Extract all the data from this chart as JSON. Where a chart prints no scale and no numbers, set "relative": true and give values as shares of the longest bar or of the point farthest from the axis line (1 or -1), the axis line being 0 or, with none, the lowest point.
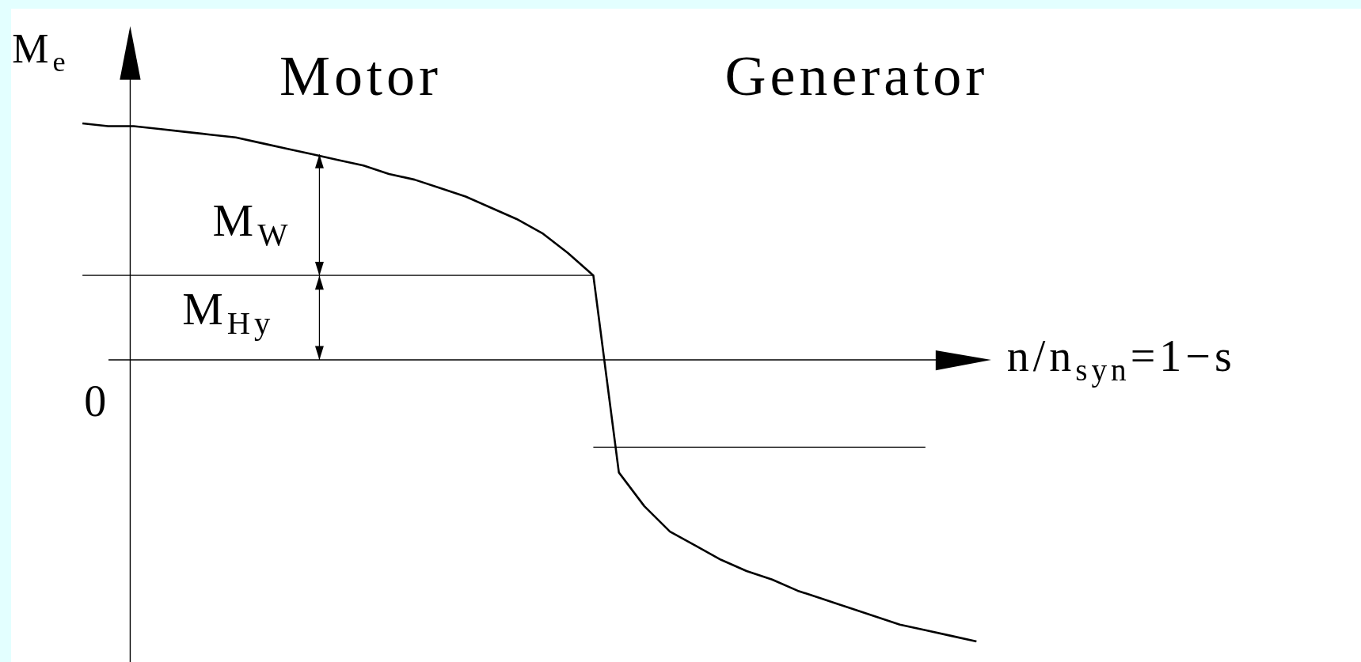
{
  "chart_data": {
    "type": "line",
    "relative": true,
    "ylabel": "M$_{e}$",
    "xlabel": "n/n$_{syn}$=1−s",
    "categories": [
      null,
      null,
      null,
      null,
      null,
      null,
      null,
      null,
      null,
      null,
      null,
      null,
      null,
      null,
      null,
      null,
      null,
      null,
      null,
      null,
      null,
      null,
      null,
      null,
      null,
      null,
      null,
      null,
      null,
      null,
      null,
      null,
      null,
      null,
      null,
      null
    ],
    "series": [
      {
        "color": "#000000",
        "values": [
          0.84,
          0.83,
          0.83,
          0.82,
          0.81,
          0.8,
          0.79,
          0.77,
          0.75,
          0.73,
          0.71,
          0.69,
          0.66,
          0.64,
          0.61,
          0.58,
          0.54,
          0.5,
          0.45,
          0.38,
          0.3,
          -0.4,
          -0.52,
          -0.61,
          -0.66,
          -0.71,
          -0.75,
          -0.78,
          -0.82,
          -0.85,
          -0.88,
          -0.91,
          -0.94,
          -0.96,
          -0.98,
          -1
        ]
      },
      {
        "color": "#000000",
        "values": [
          0.3,
          0.3,
          0.3,
          0.3,
          0.3,
          0.3,
          0.3,
          0.3,
          0.3,
          0.3,
          0.3,
          0.3,
          0.3,
          0.3,
          0.3,
          0.3,
          0.3,
          0.3,
          0.3,
          0.3,
          0.3,
          null,
          null,
          null,
          null,
          null,
          null,
          null,
          null,
          null,
          null,
          null,
          null,
          null,
          null,
          null
        ]
      },
      {
        "color": "#000000",
        "values": [
          null,
          null,
          null,
          null,
          null,
          null,
          null,
          null,
          null,
          null,
          null,
          null,
          null,
          null,
          null,
          null,
          null,
          null,
          null,
          null,
          -0.31,
          -0.31,
          -0.31,
          -0.31,
          -0.31,
          -0.31,
          -0.31,
          -0.31,
          -0.31,
          -0.31,
          -0.31,
          -0.31,
          -0.31,
          -0.31,
          null,
          null
        ]
      }
    ],
    "annotations": [
      "Motor",
      "Generator",
      "M$_{W}$",
      "M$_{Hy}$",
      "0"
    ],
    "legend": false,
    "marker": "none",
    "line_style": "solid"
  }
}
